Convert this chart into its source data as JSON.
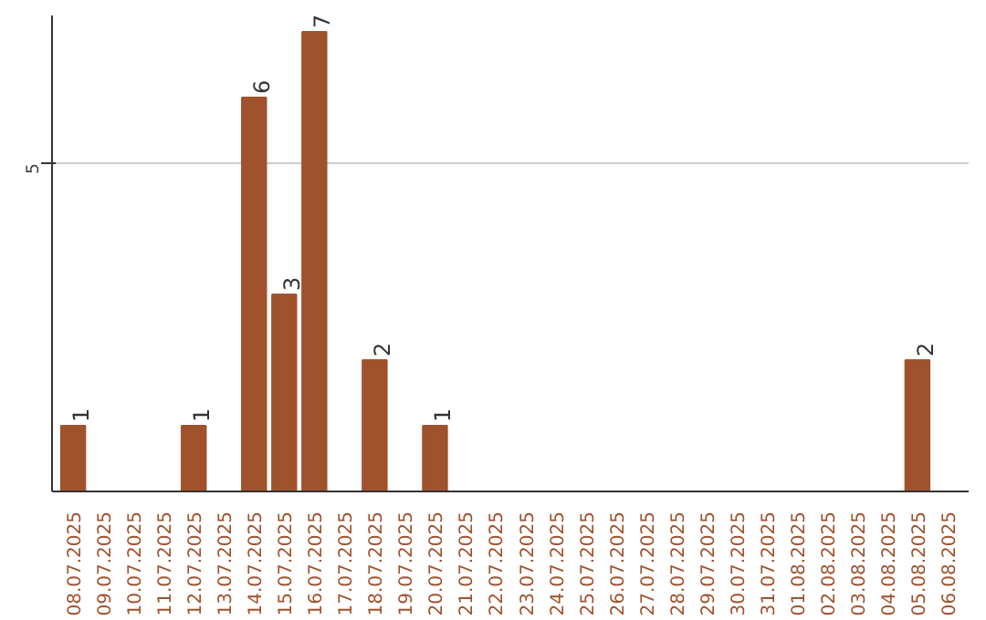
{
  "chart_data": {
    "type": "bar",
    "categories": [
      "08.07.2025",
      "09.07.2025",
      "10.07.2025",
      "11.07.2025",
      "12.07.2025",
      "13.07.2025",
      "14.07.2025",
      "15.07.2025",
      "16.07.2025",
      "17.07.2025",
      "18.07.2025",
      "19.07.2025",
      "20.07.2025",
      "21.07.2025",
      "22.07.2025",
      "23.07.2025",
      "24.07.2025",
      "25.07.2025",
      "26.07.2025",
      "27.07.2025",
      "28.07.2025",
      "29.07.2025",
      "30.07.2025",
      "31.07.2025",
      "01.08.2025",
      "02.08.2025",
      "03.08.2025",
      "04.08.2025",
      "05.08.2025",
      "06.08.2025"
    ],
    "values": [
      1,
      0,
      0,
      0,
      1,
      0,
      6,
      3,
      7,
      0,
      2,
      0,
      1,
      0,
      0,
      0,
      0,
      0,
      0,
      0,
      0,
      0,
      0,
      0,
      0,
      0,
      0,
      0,
      2,
      0
    ],
    "value_labels": [
      "1",
      null,
      null,
      null,
      "1",
      null,
      "6",
      "3",
      "7",
      null,
      "2",
      null,
      "1",
      null,
      null,
      null,
      null,
      null,
      null,
      null,
      null,
      null,
      null,
      null,
      null,
      null,
      null,
      null,
      "2",
      null
    ],
    "color": "#a0522d",
    "ylim": [
      0,
      7.25
    ],
    "yticks": [
      5
    ],
    "grid": "y"
  }
}
